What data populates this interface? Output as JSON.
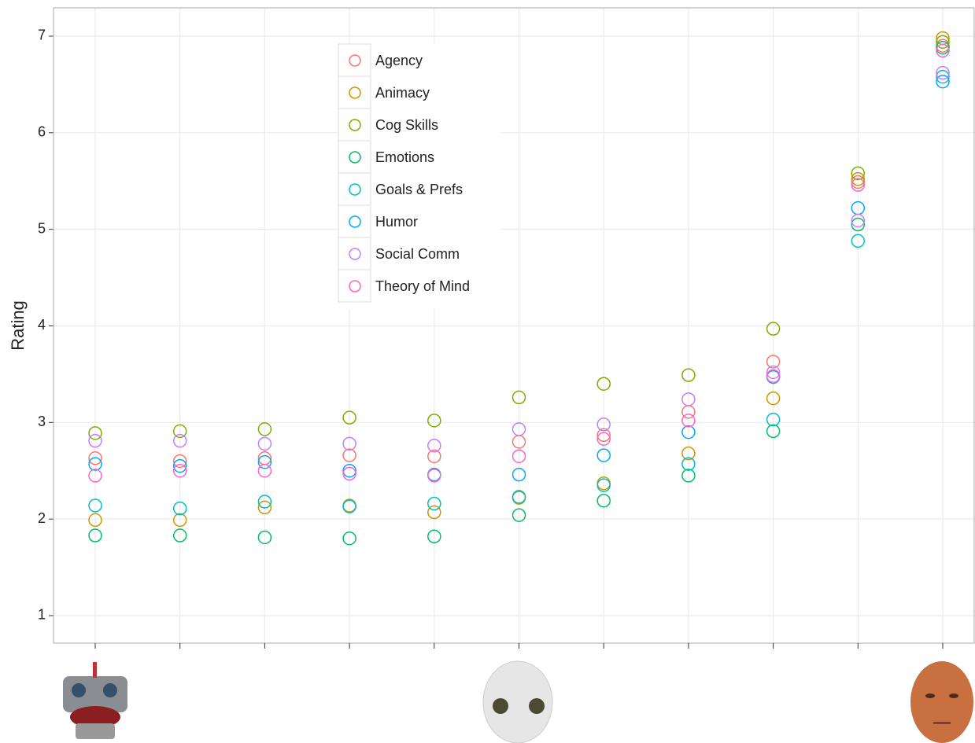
{
  "chart_data": {
    "type": "scatter",
    "y_label": "Rating",
    "categories": [
      null,
      null,
      null,
      null,
      null,
      null,
      null,
      null,
      null,
      null,
      null
    ],
    "ylim": [
      0.715,
      7.293
    ],
    "yticks": [
      1,
      2,
      3,
      4,
      5,
      6,
      7
    ],
    "grid": true,
    "legend": "inside-top",
    "series": [
      {
        "name": "Agency",
        "color": "#F8766D",
        "values": [
          2.63,
          2.6,
          2.63,
          2.66,
          2.65,
          2.8,
          2.87,
          3.11,
          3.63,
          5.49,
          6.9
        ]
      },
      {
        "name": "Animacy",
        "color": "#CD9600",
        "values": [
          1.99,
          1.99,
          2.12,
          2.14,
          2.07,
          2.22,
          2.37,
          2.68,
          3.25,
          5.52,
          6.98
        ]
      },
      {
        "name": "Cog Skills",
        "color": "#7CAE00",
        "values": [
          2.89,
          2.91,
          2.93,
          3.05,
          3.02,
          3.26,
          3.4,
          3.49,
          3.97,
          5.58,
          6.94
        ]
      },
      {
        "name": "Emotions",
        "color": "#00BE67",
        "values": [
          1.83,
          1.83,
          1.81,
          1.8,
          1.82,
          2.04,
          2.19,
          2.45,
          2.91,
          5.05,
          6.88
        ]
      },
      {
        "name": "Goals & Prefs",
        "color": "#00BFC4",
        "values": [
          2.14,
          2.11,
          2.18,
          2.13,
          2.16,
          2.23,
          2.35,
          2.57,
          3.03,
          4.88,
          6.58
        ]
      },
      {
        "name": "Humor",
        "color": "#00A9FF",
        "values": [
          2.57,
          2.55,
          2.59,
          2.5,
          2.46,
          2.46,
          2.66,
          2.9,
          3.47,
          5.22,
          6.53
        ]
      },
      {
        "name": "Social Comm",
        "color": "#C77CFF",
        "values": [
          2.81,
          2.81,
          2.78,
          2.78,
          2.76,
          2.93,
          2.98,
          3.24,
          3.52,
          5.09,
          6.62
        ]
      },
      {
        "name": "Theory of Mind",
        "color": "#FF61CC",
        "values": [
          2.45,
          2.5,
          2.5,
          2.47,
          2.45,
          2.65,
          2.83,
          3.02,
          3.48,
          5.46,
          6.85
        ]
      }
    ]
  }
}
